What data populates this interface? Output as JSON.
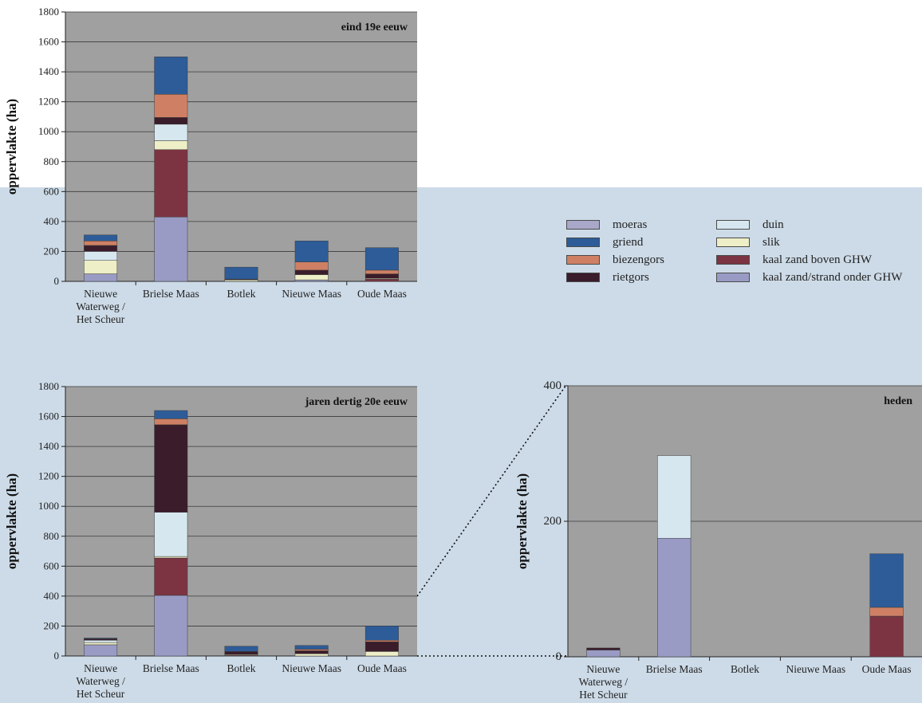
{
  "colors": {
    "moeras": "#a9a8c9",
    "griend": "#2d5c98",
    "biezengors": "#cf8064",
    "rietgors": "#3a1c2a",
    "duin": "#d7e7ef",
    "slik": "#eeeec7",
    "kaal zand boven GHW": "#7c3442",
    "kaal zand/strand onder GHW": "#9a9bc4"
  },
  "legend": {
    "items": [
      {
        "label": "moeras",
        "key": "moeras"
      },
      {
        "label": "griend",
        "key": "griend"
      },
      {
        "label": "biezengors",
        "key": "biezengors"
      },
      {
        "label": "rietgors",
        "key": "rietgors"
      },
      {
        "label": "duin",
        "key": "duin"
      },
      {
        "label": "slik",
        "key": "slik"
      },
      {
        "label": "kaal zand boven GHW",
        "key": "kaal zand boven GHW"
      },
      {
        "label": "kaal zand/strand onder GHW",
        "key": "kaal zand/strand onder GHW"
      }
    ]
  },
  "chart_data": [
    {
      "type": "bar",
      "stacked": true,
      "title": "eind 19e eeuw",
      "ylabel": "oppervlakte (ha)",
      "ylim": [
        0,
        1800
      ],
      "yticks": [
        0,
        200,
        400,
        600,
        800,
        1000,
        1200,
        1400,
        1600,
        1800
      ],
      "categories": [
        "Nieuwe Waterweg / Het Scheur",
        "Brielse Maas",
        "Botlek",
        "Nieuwe Maas",
        "Oude Maas"
      ],
      "category_lines": [
        [
          "Nieuwe",
          "Waterweg /",
          "Het Scheur"
        ],
        [
          "Brielse Maas"
        ],
        [
          "Botlek"
        ],
        [
          "Nieuwe Maas"
        ],
        [
          "Oude Maas"
        ]
      ],
      "series": [
        {
          "name": "kaal zand/strand onder GHW",
          "values": [
            50,
            430,
            0,
            10,
            0
          ]
        },
        {
          "name": "kaal zand boven GHW",
          "values": [
            0,
            450,
            0,
            0,
            15
          ]
        },
        {
          "name": "slik",
          "values": [
            90,
            60,
            10,
            35,
            5
          ]
        },
        {
          "name": "duin",
          "values": [
            60,
            110,
            0,
            0,
            0
          ]
        },
        {
          "name": "rietgors",
          "values": [
            40,
            45,
            5,
            30,
            30
          ]
        },
        {
          "name": "biezengors",
          "values": [
            30,
            155,
            0,
            55,
            25
          ]
        },
        {
          "name": "griend",
          "values": [
            40,
            250,
            80,
            140,
            150
          ]
        },
        {
          "name": "moeras",
          "values": [
            0,
            0,
            0,
            0,
            0
          ]
        }
      ]
    },
    {
      "type": "bar",
      "stacked": true,
      "title": "jaren dertig 20e eeuw",
      "ylabel": "oppervlakte (ha)",
      "ylim": [
        0,
        1800
      ],
      "yticks": [
        0,
        200,
        400,
        600,
        800,
        1000,
        1200,
        1400,
        1600,
        1800
      ],
      "categories": [
        "Nieuwe Waterweg / Het Scheur",
        "Brielse Maas",
        "Botlek",
        "Nieuwe Maas",
        "Oude Maas"
      ],
      "category_lines": [
        [
          "Nieuwe",
          "Waterweg /",
          "Het Scheur"
        ],
        [
          "Brielse Maas"
        ],
        [
          "Botlek"
        ],
        [
          "Nieuwe Maas"
        ],
        [
          "Oude Maas"
        ]
      ],
      "series": [
        {
          "name": "kaal zand/strand onder GHW",
          "values": [
            75,
            405,
            0,
            0,
            0
          ]
        },
        {
          "name": "kaal zand boven GHW",
          "values": [
            0,
            250,
            5,
            0,
            0
          ]
        },
        {
          "name": "slik",
          "values": [
            15,
            10,
            5,
            15,
            30
          ]
        },
        {
          "name": "duin",
          "values": [
            15,
            295,
            0,
            0,
            0
          ]
        },
        {
          "name": "rietgors",
          "values": [
            10,
            585,
            20,
            20,
            65
          ]
        },
        {
          "name": "biezengors",
          "values": [
            0,
            40,
            0,
            10,
            10
          ]
        },
        {
          "name": "griend",
          "values": [
            5,
            55,
            35,
            25,
            95
          ]
        },
        {
          "name": "moeras",
          "values": [
            0,
            0,
            0,
            0,
            0
          ]
        }
      ]
    },
    {
      "type": "bar",
      "stacked": true,
      "title": "heden",
      "ylabel": "oppervlakte (ha)",
      "ylim": [
        0,
        400
      ],
      "yticks": [
        0,
        200,
        400
      ],
      "categories": [
        "Nieuwe Waterweg / Het Scheur",
        "Brielse Maas",
        "Botlek",
        "Nieuwe Maas",
        "Oude Maas"
      ],
      "category_lines": [
        [
          "Nieuwe",
          "Waterweg /",
          "Het Scheur"
        ],
        [
          "Brielse Maas"
        ],
        [
          "Botlek"
        ],
        [
          "Nieuwe Maas"
        ],
        [
          "Oude Maas"
        ]
      ],
      "series": [
        {
          "name": "kaal zand/strand onder GHW",
          "values": [
            10,
            175,
            0,
            0,
            0
          ]
        },
        {
          "name": "kaal zand boven GHW",
          "values": [
            0,
            0,
            0,
            0,
            60
          ]
        },
        {
          "name": "slik",
          "values": [
            0,
            0,
            0,
            0,
            0
          ]
        },
        {
          "name": "duin",
          "values": [
            0,
            122,
            0,
            0,
            0
          ]
        },
        {
          "name": "rietgors",
          "values": [
            3,
            0,
            0,
            0,
            0
          ]
        },
        {
          "name": "biezengors",
          "values": [
            0,
            0,
            0,
            0,
            13
          ]
        },
        {
          "name": "griend",
          "values": [
            0,
            0,
            0,
            0,
            79
          ]
        },
        {
          "name": "moeras",
          "values": [
            0,
            0,
            0,
            0,
            0
          ]
        }
      ]
    }
  ]
}
